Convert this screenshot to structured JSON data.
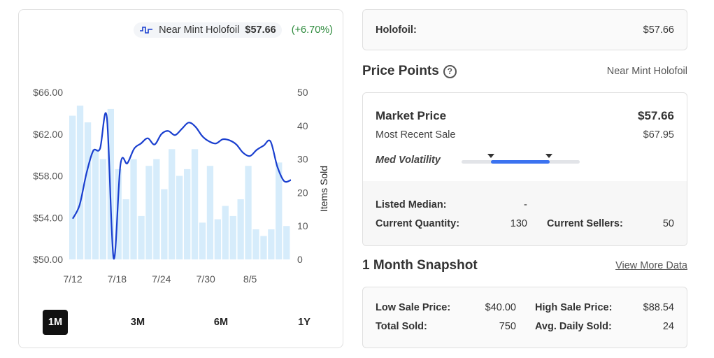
{
  "chart": {
    "legend_name": "Near Mint Holofoil",
    "legend_price": "$57.66",
    "legend_change": "(+6.70%)",
    "y_axis_right_label": "Items Sold",
    "ranges": [
      "1M",
      "3M",
      "6M",
      "1Y"
    ],
    "active_range": "1M"
  },
  "chart_data": {
    "type": "line",
    "x_ticks": [
      "7/12",
      "7/18",
      "7/24",
      "7/30",
      "8/5"
    ],
    "y_left_ticks": [
      "$66.00",
      "$62.00",
      "$58.00",
      "$54.00",
      "$50.00"
    ],
    "y_right_ticks": [
      "50",
      "40",
      "30",
      "20",
      "10",
      "0"
    ],
    "ylim_price": [
      50,
      66
    ],
    "ylim_sold": [
      0,
      50
    ],
    "grid": false,
    "series": [
      {
        "kind": "line",
        "color": "#1a3fcf",
        "values": [
          53.9,
          55.2,
          58.2,
          60.4,
          60.6,
          63.6,
          50.1,
          59.1,
          59.2,
          60.6,
          61.1,
          61.6,
          61.0,
          62.0,
          62.3,
          61.9,
          62.5,
          63.1,
          62.7,
          61.8,
          61.3,
          61.1,
          61.5,
          61.4,
          61.0,
          60.2,
          59.9,
          60.5,
          60.9,
          61.3,
          58.9,
          57.5,
          57.6
        ]
      },
      {
        "kind": "bar",
        "color": "#d6ecfb",
        "values": [
          43,
          46,
          41,
          33,
          30,
          45,
          27,
          18,
          30,
          13,
          28,
          30,
          21,
          33,
          25,
          27,
          33,
          11,
          28,
          12,
          16,
          13,
          18,
          28,
          9,
          7,
          9,
          29,
          10
        ]
      }
    ]
  },
  "holofoil": {
    "label": "Holofoil:",
    "value": "$57.66"
  },
  "price_points": {
    "title": "Price Points",
    "help_icon": "?",
    "condition": "Near Mint Holofoil",
    "market_price_label": "Market Price",
    "market_price_value": "$57.66",
    "recent_sale_label": "Most Recent Sale",
    "recent_sale_value": "$67.95",
    "volatility_label": "Med Volatility",
    "listed_median_label": "Listed Median:",
    "listed_median_value": "-",
    "current_quantity_label": "Current Quantity:",
    "current_quantity_value": "130",
    "current_sellers_label": "Current Sellers:",
    "current_sellers_value": "50"
  },
  "snapshot": {
    "title": "1 Month Snapshot",
    "view_more": "View More Data",
    "low_sale_label": "Low Sale Price:",
    "low_sale_value": "$40.00",
    "high_sale_label": "High Sale Price:",
    "high_sale_value": "$88.54",
    "total_sold_label": "Total Sold:",
    "total_sold_value": "750",
    "avg_daily_label": "Avg. Daily Sold:",
    "avg_daily_value": "24"
  }
}
